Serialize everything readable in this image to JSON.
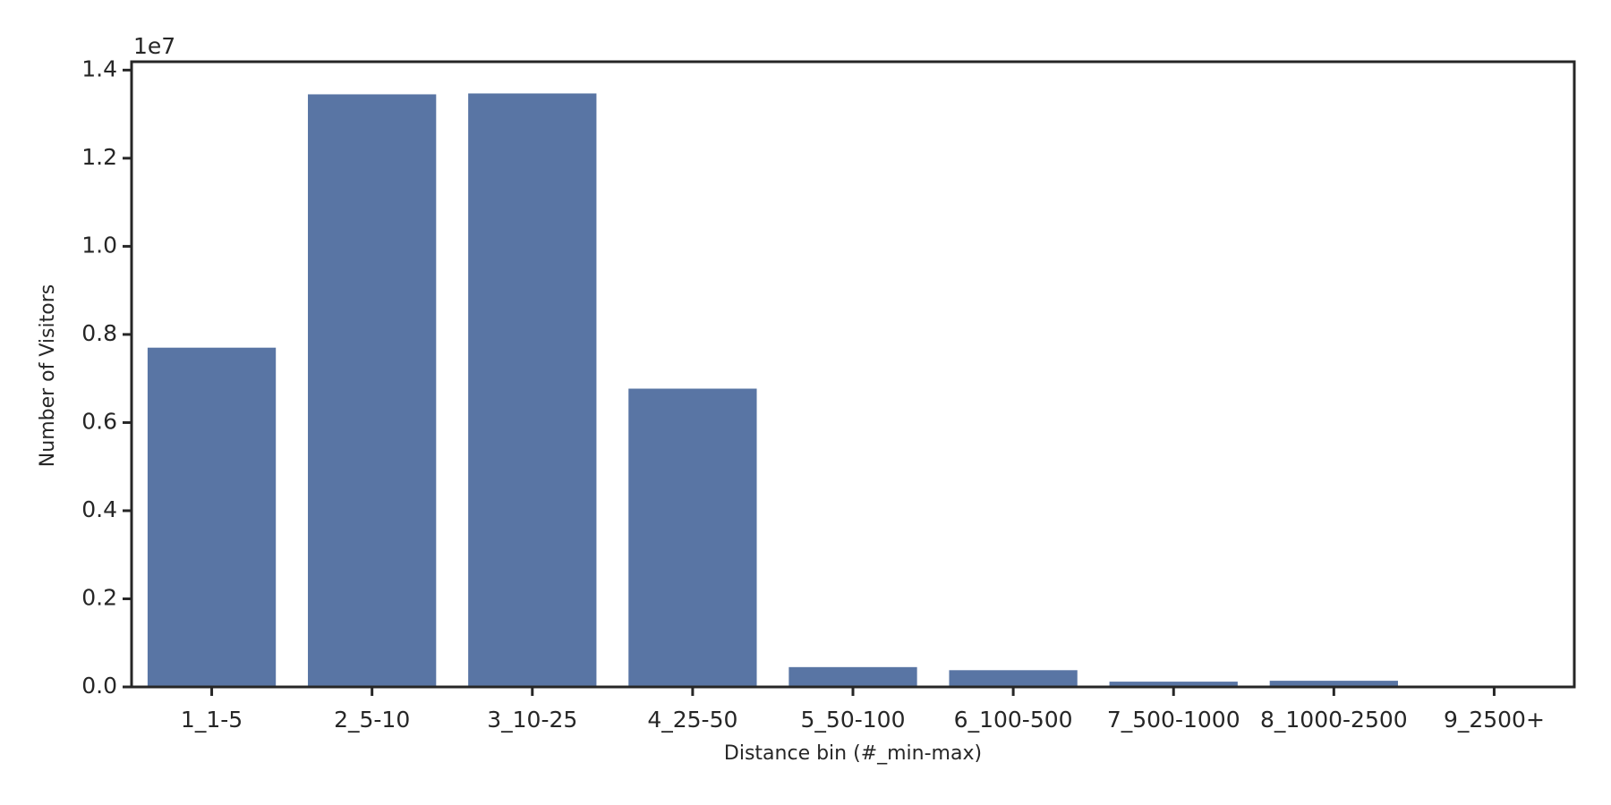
{
  "chart_data": {
    "type": "bar",
    "x_label": "Distance bin (#_min-max)",
    "y_label": "Number of Visitors",
    "y_offset_label": "1e7",
    "categories": [
      "1_1-5",
      "2_5-10",
      "3_10-25",
      "4_25-50",
      "5_50-100",
      "6_100-500",
      "7_500-1000",
      "8_1000-2500",
      "9_2500+"
    ],
    "values": [
      7700000,
      13450000,
      13470000,
      6770000,
      450000,
      380000,
      120000,
      140000,
      10000
    ],
    "color": "#5975a4",
    "ylim": [
      0,
      14190000
    ],
    "yticks": [
      {
        "value": 0,
        "label": "0.0"
      },
      {
        "value": 2000000,
        "label": "0.2"
      },
      {
        "value": 4000000,
        "label": "0.4"
      },
      {
        "value": 6000000,
        "label": "0.6"
      },
      {
        "value": 8000000,
        "label": "0.8"
      },
      {
        "value": 10000000,
        "label": "1.0"
      },
      {
        "value": 12000000,
        "label": "1.2"
      },
      {
        "value": 14000000,
        "label": "1.4"
      }
    ],
    "grid": false
  }
}
